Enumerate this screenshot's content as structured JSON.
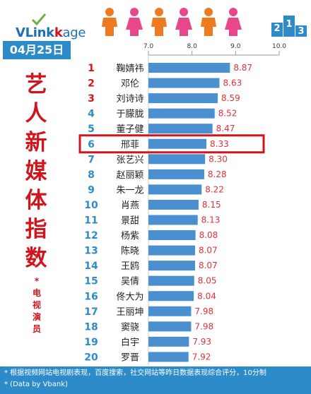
{
  "brand": {
    "prefix": "VLink",
    "link_part": "k",
    "suffix": "age"
  },
  "header": {
    "date": "04月25日"
  },
  "title": {
    "chars": [
      "艺",
      "人",
      "新",
      "媒",
      "体",
      "指",
      "数"
    ]
  },
  "subtitle": {
    "mark": "*",
    "chars": [
      "电",
      "视",
      "演",
      "员"
    ]
  },
  "colors": {
    "accent_blue": "#2e8bc9",
    "bar_blue": "#4a90d0",
    "rank_top": "#d0151c",
    "rank_other": "#2e8bc9",
    "value_red": "#e0313a",
    "highlight_border": "#d0151c",
    "person_orange": "#f07a1f",
    "person_pink": "#e8478c"
  },
  "chart_data": {
    "type": "bar",
    "orientation": "horizontal",
    "x_ticks": [
      "7.0",
      "8.0",
      "9.0",
      "10.0"
    ],
    "xlim": [
      7.0,
      10.0
    ],
    "highlight_rank": 6,
    "rows": [
      {
        "rank": "1",
        "name": "鞠婧祎",
        "value": 8.87,
        "label": "8.87"
      },
      {
        "rank": "2",
        "name": "邓伦",
        "value": 8.63,
        "label": "8.63"
      },
      {
        "rank": "3",
        "name": "刘诗诗",
        "value": 8.59,
        "label": "8.59"
      },
      {
        "rank": "4",
        "name": "于朦胧",
        "value": 8.52,
        "label": "8.52"
      },
      {
        "rank": "5",
        "name": "董子健",
        "value": 8.47,
        "label": "8.47"
      },
      {
        "rank": "6",
        "name": "邢菲",
        "value": 8.33,
        "label": "8.33"
      },
      {
        "rank": "7",
        "name": "张艺兴",
        "value": 8.3,
        "label": "8.30"
      },
      {
        "rank": "8",
        "name": "赵丽颖",
        "value": 8.28,
        "label": "8.28"
      },
      {
        "rank": "9",
        "name": "朱一龙",
        "value": 8.22,
        "label": "8.22"
      },
      {
        "rank": "10",
        "name": "肖燕",
        "value": 8.15,
        "label": "8.15"
      },
      {
        "rank": "11",
        "name": "景甜",
        "value": 8.13,
        "label": "8.13"
      },
      {
        "rank": "12",
        "name": "杨紫",
        "value": 8.08,
        "label": "8.08"
      },
      {
        "rank": "13",
        "name": "陈晓",
        "value": 8.07,
        "label": "8.07"
      },
      {
        "rank": "14",
        "name": "王鸥",
        "value": 8.07,
        "label": "8.07"
      },
      {
        "rank": "15",
        "name": "吴倩",
        "value": 8.05,
        "label": "8.05"
      },
      {
        "rank": "16",
        "name": "佟大为",
        "value": 8.04,
        "label": "8.04"
      },
      {
        "rank": "17",
        "name": "王丽坤",
        "value": 7.98,
        "label": "7.98"
      },
      {
        "rank": "18",
        "name": "窦骁",
        "value": 7.98,
        "label": "7.98"
      },
      {
        "rank": "19",
        "name": "白宇",
        "value": 7.93,
        "label": "7.93"
      },
      {
        "rank": "20",
        "name": "罗晋",
        "value": 7.92,
        "label": "7.92"
      }
    ]
  },
  "footer": {
    "line1": "* 根据视频网站电视剧表现，百度搜索，社交网站等昨日数据表现综合评分，10分制",
    "line2": "* (Data by Vbank)"
  }
}
